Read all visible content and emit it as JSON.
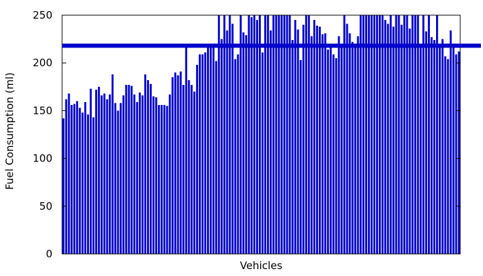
{
  "chart_data": {
    "type": "bar",
    "xlabel": "Vehicles",
    "ylabel": "Fuel Consumption (ml)",
    "ylim": [
      0,
      250
    ],
    "yticks": [
      0,
      50,
      100,
      150,
      200,
      250
    ],
    "grid": false,
    "legend": "none",
    "bar_color": "#0000cc",
    "reference_line": {
      "y": 218,
      "color": "#0000cc"
    },
    "values": [
      142,
      162,
      168,
      156,
      157,
      160,
      153,
      148,
      159,
      146,
      173,
      143,
      172,
      175,
      166,
      168,
      162,
      167,
      188,
      158,
      150,
      158,
      166,
      177,
      177,
      176,
      167,
      159,
      169,
      166,
      188,
      182,
      178,
      165,
      164,
      156,
      156,
      156,
      155,
      167,
      185,
      190,
      187,
      191,
      177,
      216,
      182,
      177,
      170,
      198,
      209,
      209,
      211,
      220,
      218,
      220,
      202,
      250,
      225,
      250,
      234,
      250,
      241,
      204,
      209,
      250,
      232,
      229,
      250,
      248,
      250,
      245,
      250,
      211,
      250,
      250,
      234,
      250,
      250,
      250,
      250,
      250,
      250,
      250,
      224,
      245,
      235,
      203,
      240,
      250,
      250,
      228,
      245,
      239,
      238,
      230,
      231,
      214,
      220,
      209,
      205,
      228,
      220,
      250,
      241,
      231,
      222,
      220,
      228,
      250,
      250,
      250,
      250,
      250,
      250,
      250,
      250,
      250,
      245,
      241,
      250,
      238,
      250,
      250,
      240,
      250,
      250,
      236,
      250,
      250,
      250,
      216,
      250,
      233,
      250,
      227,
      224,
      250,
      217,
      225,
      207,
      204,
      234,
      219,
      209,
      212
    ]
  }
}
